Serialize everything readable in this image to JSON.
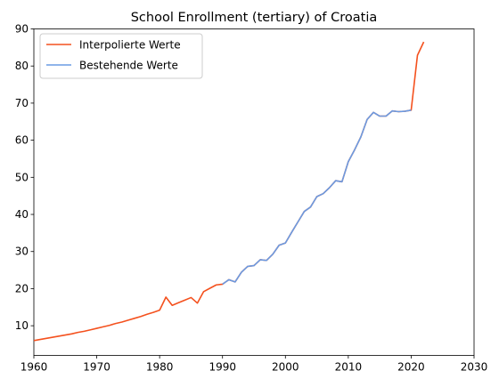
{
  "chart_data": {
    "type": "line",
    "title": "School Enrollment (tertiary) of Croatia",
    "xlabel": "",
    "ylabel": "",
    "xlim": [
      1960,
      2030
    ],
    "ylim": [
      2,
      90
    ],
    "xticks": [
      1960,
      1970,
      1980,
      1990,
      2000,
      2010,
      2020,
      2030
    ],
    "yticks": [
      10,
      20,
      30,
      40,
      50,
      60,
      70,
      80,
      90
    ],
    "grid": false,
    "legend_position": "top-left",
    "series": [
      {
        "name": "Interpolierte Werte",
        "color": "#f4511e",
        "x": [
          1960,
          1961,
          1962,
          1963,
          1964,
          1965,
          1966,
          1967,
          1968,
          1969,
          1970,
          1971,
          1972,
          1973,
          1974,
          1975,
          1976,
          1977,
          1978,
          1979,
          1980,
          1981,
          1982,
          1983,
          1984,
          1985,
          1986,
          1987,
          1988,
          1989,
          1990,
          1991,
          1992,
          1993,
          1994,
          1995,
          1996,
          1997,
          1998,
          1999,
          2000,
          2001,
          2002,
          2003,
          2004,
          2005,
          2006,
          2007,
          2008,
          2009,
          2010,
          2011,
          2012,
          2013,
          2014,
          2015,
          2016,
          2017,
          2018,
          2019,
          2020,
          2021,
          2022
        ],
        "y": [
          6.0,
          6.3,
          6.6,
          6.9,
          7.2,
          7.5,
          7.8,
          8.2,
          8.5,
          8.9,
          9.3,
          9.7,
          10.1,
          10.6,
          11.0,
          11.5,
          12.0,
          12.5,
          13.1,
          13.6,
          14.2,
          17.7,
          15.5,
          16.2,
          16.9,
          17.6,
          16.1,
          19.2,
          20.1,
          21.0,
          21.2,
          22.4,
          21.8,
          24.4,
          26.0,
          26.2,
          27.8,
          27.6,
          29.3,
          31.7,
          32.3,
          35.2,
          38.0,
          40.8,
          42.0,
          44.8,
          45.6,
          47.2,
          49.1,
          48.8,
          54.2,
          57.4,
          60.9,
          65.6,
          67.5,
          66.5,
          66.5,
          67.9,
          67.7,
          67.8,
          68.1,
          82.9,
          86.5
        ]
      },
      {
        "name": "Bestehende Werte",
        "color": "#6a9be3",
        "x": [
          1990,
          1991,
          1992,
          1993,
          1994,
          1995,
          1996,
          1997,
          1998,
          1999,
          2000,
          2001,
          2002,
          2003,
          2004,
          2005,
          2006,
          2007,
          2008,
          2009,
          2010,
          2011,
          2012,
          2013,
          2014,
          2015,
          2016,
          2017,
          2018,
          2019,
          2020
        ],
        "y": [
          21.2,
          22.4,
          21.8,
          24.4,
          26.0,
          26.2,
          27.8,
          27.6,
          29.3,
          31.7,
          32.3,
          35.2,
          38.0,
          40.8,
          42.0,
          44.8,
          45.6,
          47.2,
          49.1,
          48.8,
          54.2,
          57.4,
          60.9,
          65.6,
          67.5,
          66.5,
          66.5,
          67.9,
          67.7,
          67.8,
          68.1
        ]
      }
    ]
  }
}
